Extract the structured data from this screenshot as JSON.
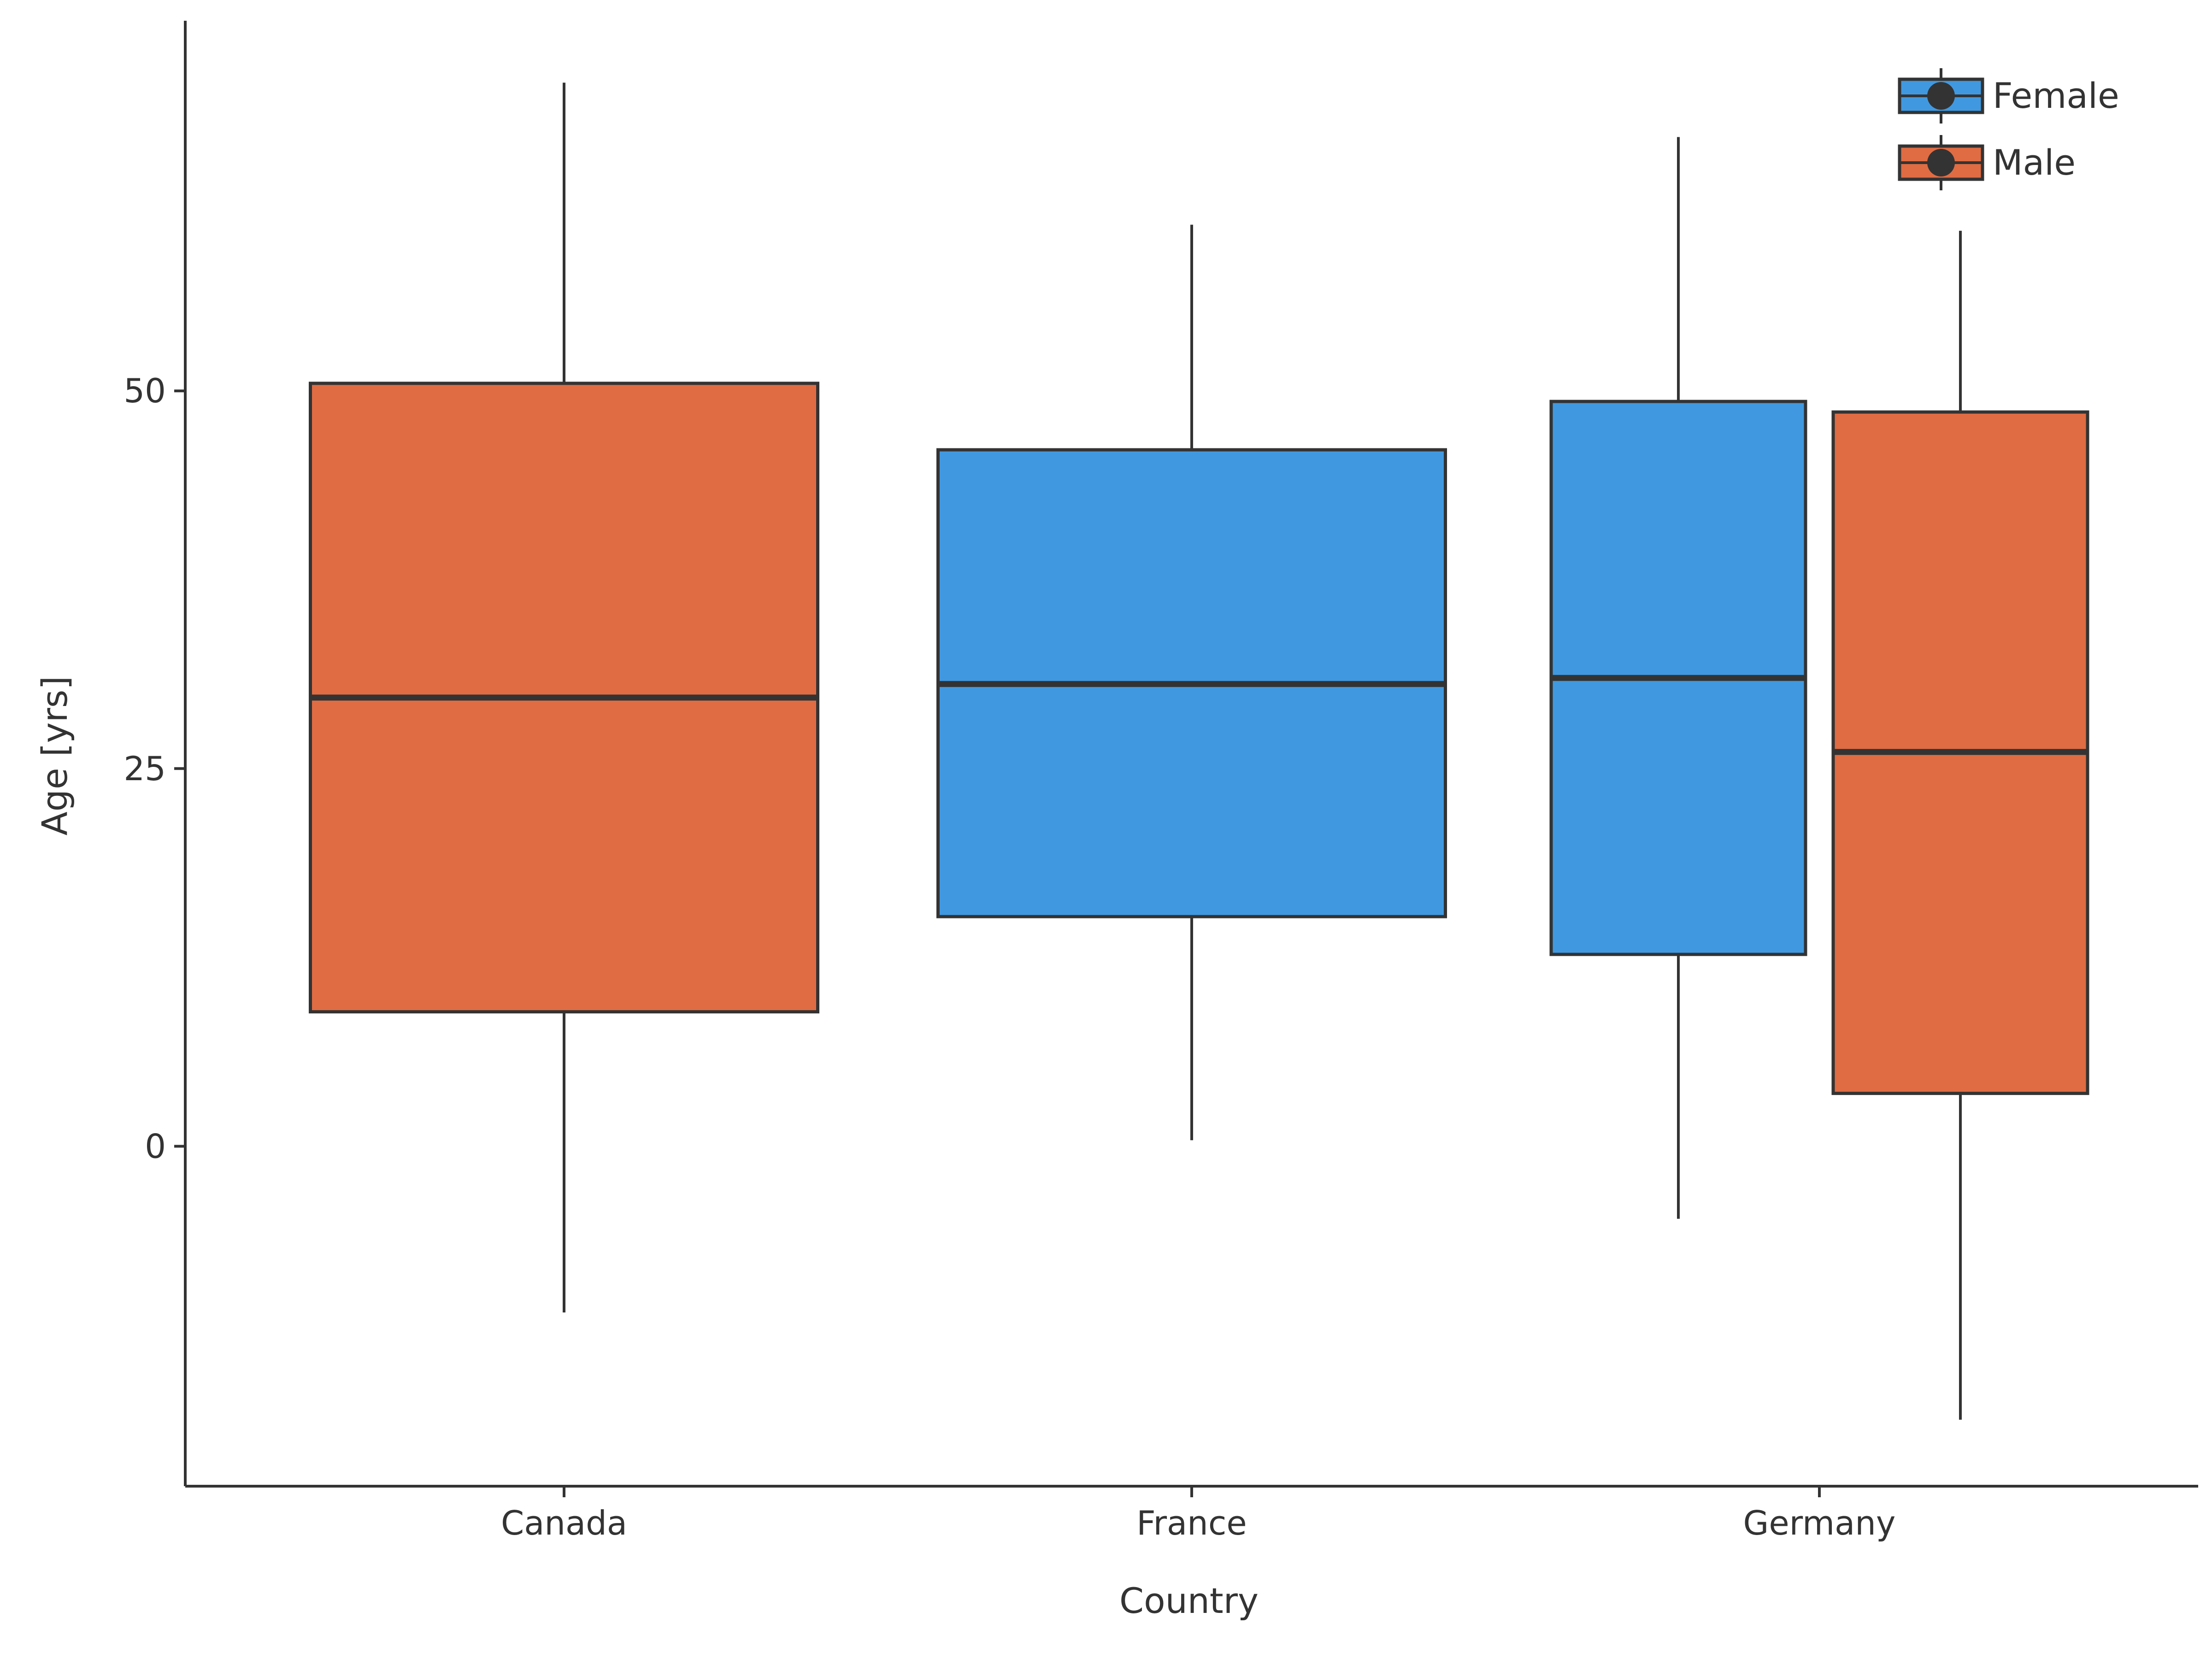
{
  "chart_data": {
    "type": "box",
    "title": "",
    "xlabel": "Country",
    "ylabel": "Age [yrs]",
    "categories": [
      "Canada",
      "France",
      "Germany"
    ],
    "y_ticks": [
      0,
      25,
      50
    ],
    "ylim": [
      -22.5,
      74.5
    ],
    "grid": false,
    "legend_position": "top-right",
    "series": [
      {
        "name": "Female",
        "color": "#4099e0",
        "boxes": [
          {
            "category": "France",
            "min": 0.4,
            "q1": 15.2,
            "median": 30.6,
            "q3": 46.1,
            "max": 61.0
          },
          {
            "category": "Germany",
            "min": -4.8,
            "q1": 12.7,
            "median": 31.0,
            "q3": 49.3,
            "max": 66.8
          }
        ]
      },
      {
        "name": "Male",
        "color": "#e06c43",
        "boxes": [
          {
            "category": "Canada",
            "min": -11.0,
            "q1": 8.9,
            "median": 29.7,
            "q3": 50.5,
            "max": 70.4
          },
          {
            "category": "Germany",
            "min": -18.1,
            "q1": 3.5,
            "median": 26.1,
            "q3": 48.6,
            "max": 60.6
          }
        ]
      }
    ]
  }
}
